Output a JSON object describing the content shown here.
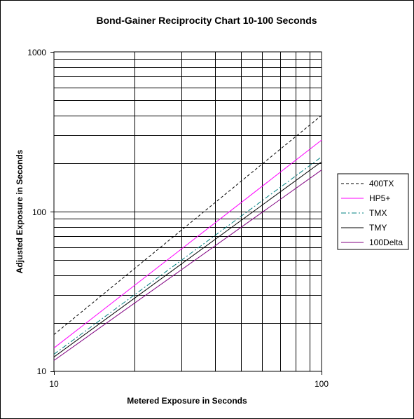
{
  "chart_data": {
    "type": "line",
    "title": "Bond-Gainer Reciprocity Chart 10-100 Seconds",
    "xlabel": "Metered Exposure in Seconds",
    "ylabel": "Adjusted Exposure in Seconds",
    "x_scale": "log",
    "y_scale": "log",
    "xlim": [
      10,
      100
    ],
    "ylim": [
      10,
      1000
    ],
    "x_ticks": [
      "10",
      "100"
    ],
    "y_ticks": [
      "10",
      "100",
      "1000"
    ],
    "grid": true,
    "legend_position": "right",
    "x": [
      10,
      100
    ],
    "series": [
      {
        "name": "400TX",
        "values": [
          17,
          400
        ],
        "color": "#000000",
        "dash": "dashed"
      },
      {
        "name": "HP5+",
        "values": [
          14,
          280
        ],
        "color": "#ff00ff",
        "dash": "solid"
      },
      {
        "name": "TMX",
        "values": [
          12.8,
          220
        ],
        "color": "#008080",
        "dash": "dashdot"
      },
      {
        "name": "TMY",
        "values": [
          12.3,
          205
        ],
        "color": "#000000",
        "dash": "solid"
      },
      {
        "name": "100Delta",
        "values": [
          11.7,
          182
        ],
        "color": "#800080",
        "dash": "solid"
      }
    ]
  }
}
